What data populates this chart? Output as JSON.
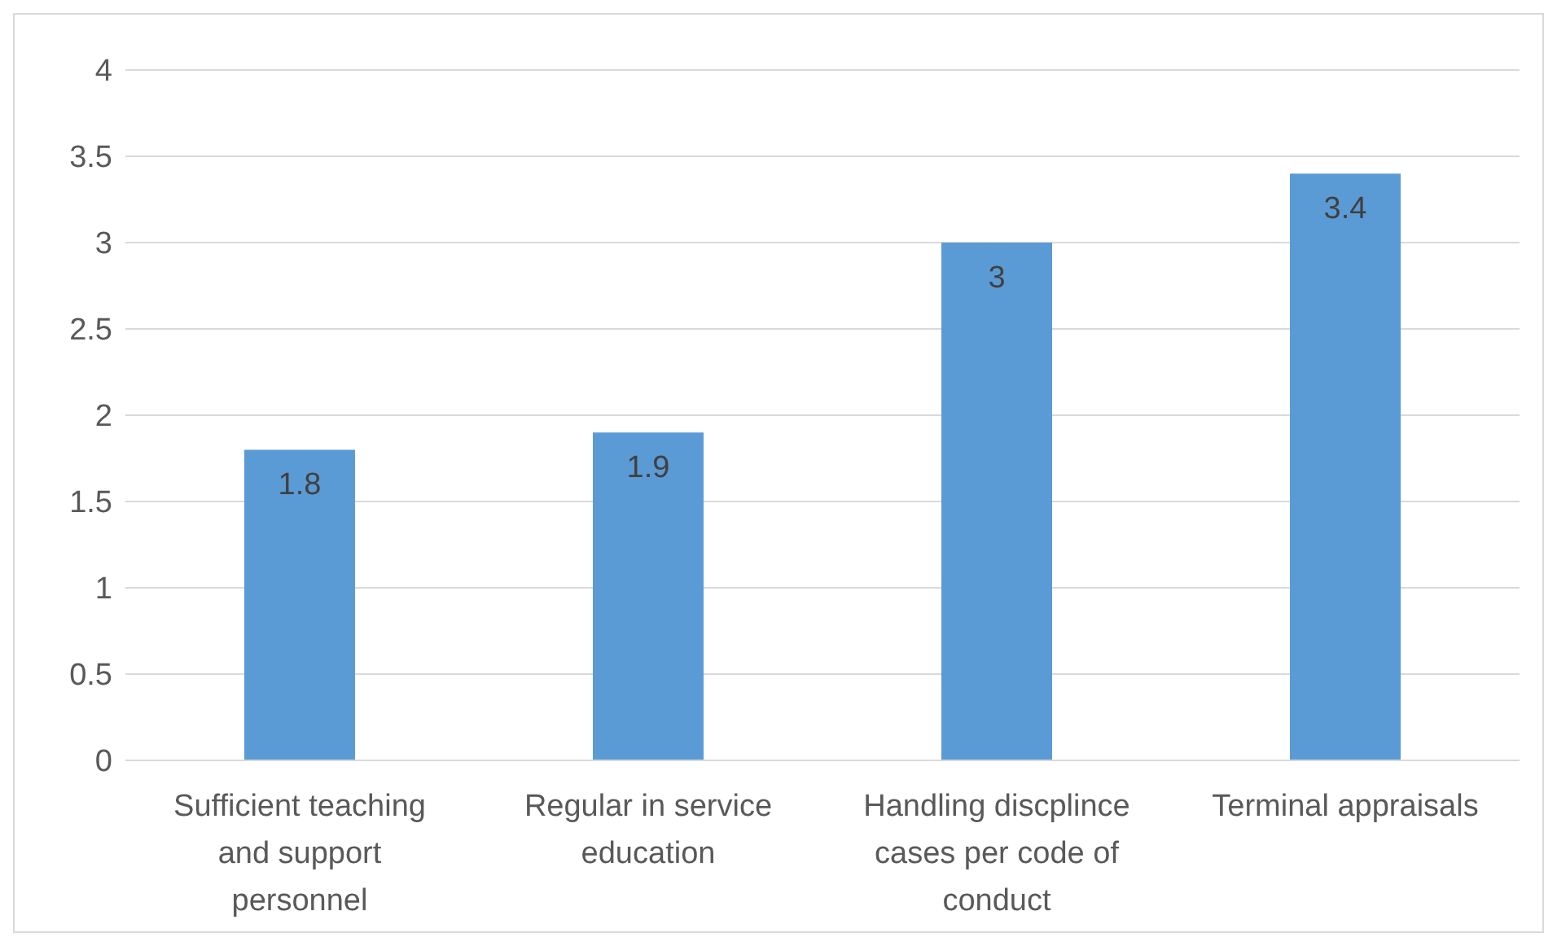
{
  "chart_data": {
    "type": "bar",
    "categories": [
      "Sufficient teaching and support personnel",
      "Regular in service education",
      "Handling discplince cases per code of conduct",
      "Terminal appraisals"
    ],
    "values": [
      1.8,
      1.9,
      3,
      3.4
    ],
    "color": "#5b9bd5",
    "ylim": [
      0,
      4
    ],
    "yticks": [
      0,
      0.5,
      1,
      1.5,
      2,
      2.5,
      3,
      3.5,
      4
    ],
    "grid": "y",
    "data_labels": true
  }
}
